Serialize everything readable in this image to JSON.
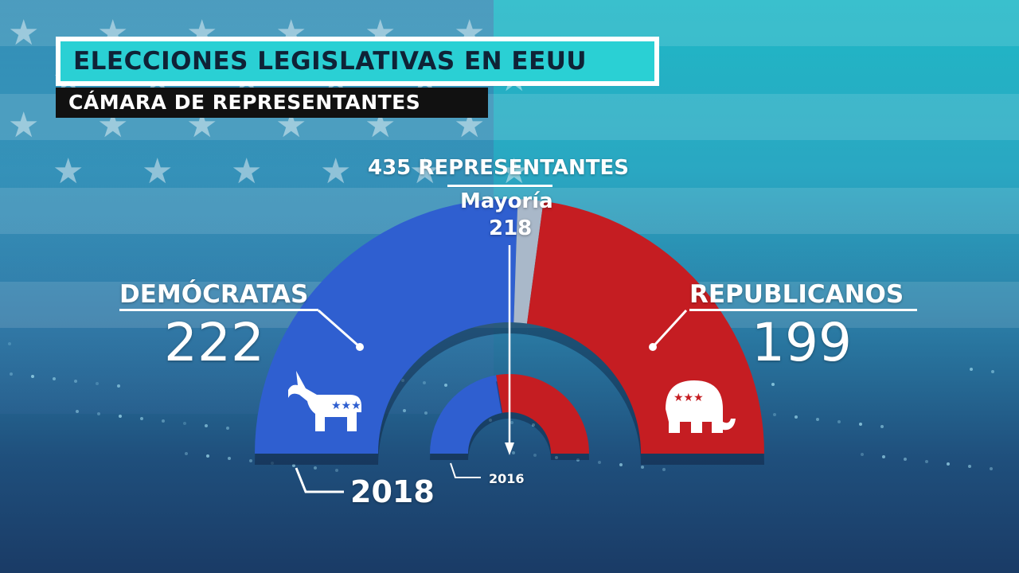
{
  "header": {
    "title": "ELECCIONES LEGISLATIVAS EN EEUU",
    "subtitle": "CÁMARA DE REPRESENTANTES"
  },
  "info": {
    "total_label": "435 REPRESENTANTES",
    "majority_label": "Mayoría",
    "majority_value": "218"
  },
  "parties": {
    "dem": {
      "name": "DEMÓCRATAS",
      "seats_label": "222",
      "icon": "donkey-icon"
    },
    "rep": {
      "name": "REPUBLICANOS",
      "seats_label": "199",
      "icon": "elephant-icon"
    }
  },
  "years": {
    "outer": "2018",
    "inner": "2016"
  },
  "colors": {
    "dem": "#2f5fd0",
    "rep": "#c51d22",
    "undecided": "#a9b8c9",
    "accent": "#2ad0d4"
  },
  "chart_data": {
    "type": "semicircle-parliament",
    "total": 435,
    "majority": 218,
    "series": [
      {
        "name": "2018",
        "values": {
          "DEMÓCRATAS": 222,
          "undecided": 14,
          "REPUBLICANOS": 199
        }
      },
      {
        "name": "2016",
        "values": {
          "DEMÓCRATAS": 194,
          "REPUBLICANOS": 241
        }
      }
    ]
  }
}
